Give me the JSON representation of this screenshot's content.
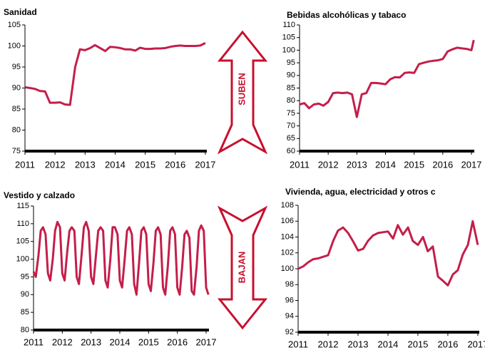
{
  "chart_data": [
    {
      "type": "line",
      "title": "Sanidad",
      "color": "#c41e4a",
      "x": [
        2011.0,
        2011.17,
        2011.33,
        2011.5,
        2011.67,
        2011.83,
        2012.0,
        2012.17,
        2012.33,
        2012.5,
        2012.67,
        2012.83,
        2013.0,
        2013.17,
        2013.33,
        2013.5,
        2013.67,
        2013.83,
        2014.0,
        2014.17,
        2014.33,
        2014.5,
        2014.67,
        2014.83,
        2015.0,
        2015.17,
        2015.33,
        2015.5,
        2015.67,
        2015.83,
        2016.0,
        2016.17,
        2016.33,
        2016.5,
        2016.67,
        2016.83,
        2017.0
      ],
      "values": [
        90.2,
        90,
        89.8,
        89.3,
        89.2,
        86.5,
        86.5,
        86.6,
        86.1,
        86,
        95,
        99.2,
        99,
        99.5,
        100.2,
        99.5,
        98.8,
        99.8,
        99.7,
        99.5,
        99.2,
        99.2,
        98.9,
        99.6,
        99.3,
        99.3,
        99.4,
        99.4,
        99.5,
        99.8,
        100,
        100.1,
        100,
        100,
        100,
        100.1,
        100.7
      ],
      "xlim": [
        2011,
        2017.05
      ],
      "xticks": [
        2011,
        2012,
        2013,
        2014,
        2015,
        2016,
        2017
      ],
      "ylim": [
        75,
        105
      ],
      "yticks": [
        75,
        80,
        85,
        90,
        95,
        100,
        105
      ]
    },
    {
      "type": "line",
      "title": "Bebidas alcohólicas y tabaco",
      "color": "#c41e4a",
      "x": [
        2011.0,
        2011.17,
        2011.33,
        2011.5,
        2011.67,
        2011.83,
        2012.0,
        2012.17,
        2012.33,
        2012.5,
        2012.67,
        2012.83,
        2013.0,
        2013.17,
        2013.33,
        2013.5,
        2013.67,
        2013.83,
        2014.0,
        2014.17,
        2014.33,
        2014.5,
        2014.67,
        2014.83,
        2015.0,
        2015.17,
        2015.33,
        2015.5,
        2015.67,
        2015.83,
        2016.0,
        2016.17,
        2016.33,
        2016.5,
        2016.67,
        2016.83,
        2017.0,
        2017.08
      ],
      "values": [
        78.5,
        79,
        77,
        78.5,
        78.8,
        78,
        79.5,
        83,
        83.2,
        83,
        83.2,
        82.5,
        73.5,
        82.5,
        83,
        87,
        87,
        86.8,
        86.5,
        88.5,
        89.3,
        89.2,
        91,
        91.2,
        91,
        94.5,
        95,
        95.5,
        95.8,
        96,
        96.5,
        99.5,
        100.3,
        101,
        100.7,
        100.5,
        100,
        104
      ],
      "xlim": [
        2011,
        2017.1
      ],
      "xticks": [
        2011,
        2012,
        2013,
        2014,
        2015,
        2016,
        2017
      ],
      "ylim": [
        60,
        110
      ],
      "yticks": [
        60,
        65,
        70,
        75,
        80,
        85,
        90,
        95,
        100,
        105,
        110
      ]
    },
    {
      "type": "line",
      "title": "Vestido y calzado",
      "color": "#c41e4a",
      "x": [
        2011.0,
        2011.08,
        2011.17,
        2011.25,
        2011.33,
        2011.42,
        2011.5,
        2011.58,
        2011.67,
        2011.75,
        2011.83,
        2011.92,
        2012.0,
        2012.08,
        2012.17,
        2012.25,
        2012.33,
        2012.42,
        2012.5,
        2012.58,
        2012.67,
        2012.75,
        2012.83,
        2012.92,
        2013.0,
        2013.08,
        2013.17,
        2013.25,
        2013.33,
        2013.42,
        2013.5,
        2013.58,
        2013.67,
        2013.75,
        2013.83,
        2013.92,
        2014.0,
        2014.08,
        2014.17,
        2014.25,
        2014.33,
        2014.42,
        2014.5,
        2014.58,
        2014.67,
        2014.75,
        2014.83,
        2014.92,
        2015.0,
        2015.08,
        2015.17,
        2015.25,
        2015.33,
        2015.42,
        2015.5,
        2015.58,
        2015.67,
        2015.75,
        2015.83,
        2015.92,
        2016.0,
        2016.08,
        2016.17,
        2016.25,
        2016.33,
        2016.42,
        2016.5,
        2016.58,
        2016.67,
        2016.75,
        2016.83,
        2016.92,
        2017.0,
        2017.08
      ],
      "values": [
        96.5,
        95,
        101,
        108,
        109,
        107,
        96,
        94,
        100,
        108,
        110.5,
        109,
        96,
        94,
        102,
        108,
        109,
        108,
        95,
        93,
        101,
        109,
        110.5,
        108,
        95,
        93,
        101,
        108,
        109,
        108,
        94,
        92,
        100,
        109,
        109,
        107,
        94,
        92,
        100,
        108,
        109,
        107,
        93,
        90,
        99,
        108,
        109,
        107,
        93,
        91,
        99,
        108,
        109,
        107,
        92,
        90,
        98,
        108,
        109,
        107,
        92,
        90,
        98,
        107,
        108,
        106,
        91,
        90,
        98,
        108,
        109.5,
        108,
        92,
        90
      ],
      "xlim": [
        2011,
        2017.1
      ],
      "xticks": [
        2011,
        2012,
        2013,
        2014,
        2015,
        2016,
        2017
      ],
      "ylim": [
        80,
        115
      ],
      "yticks": [
        80,
        85,
        90,
        95,
        100,
        105,
        110,
        115
      ]
    },
    {
      "type": "line",
      "title": "Vivienda, agua, electricidad y otros c",
      "color": "#c41e4a",
      "x": [
        2011.0,
        2011.17,
        2011.33,
        2011.5,
        2011.67,
        2011.83,
        2012.0,
        2012.17,
        2012.33,
        2012.5,
        2012.67,
        2012.83,
        2013.0,
        2013.17,
        2013.33,
        2013.5,
        2013.67,
        2013.83,
        2014.0,
        2014.17,
        2014.33,
        2014.5,
        2014.67,
        2014.83,
        2015.0,
        2015.17,
        2015.33,
        2015.5,
        2015.67,
        2015.83,
        2016.0,
        2016.17,
        2016.33,
        2016.5,
        2016.67,
        2016.83,
        2017.0
      ],
      "values": [
        100,
        100.3,
        100.8,
        101.2,
        101.3,
        101.5,
        101.7,
        103.5,
        104.8,
        105.2,
        104.5,
        103.5,
        102.3,
        102.5,
        103.5,
        104.2,
        104.5,
        104.6,
        104.7,
        103.8,
        105.5,
        104.3,
        105.2,
        103.5,
        103,
        104,
        102.2,
        102.8,
        99,
        98.5,
        97.9,
        99.3,
        99.8,
        101.8,
        103,
        106,
        103
      ],
      "xlim": [
        2011,
        2017.05
      ],
      "xticks": [
        2011,
        2012,
        2013,
        2014,
        2015,
        2016,
        2017
      ],
      "ylim": [
        92,
        108
      ],
      "yticks": [
        92,
        94,
        96,
        98,
        100,
        102,
        104,
        106,
        108
      ]
    }
  ],
  "arrows": [
    {
      "label": "SUBEN"
    },
    {
      "label": "BAJAN"
    }
  ]
}
